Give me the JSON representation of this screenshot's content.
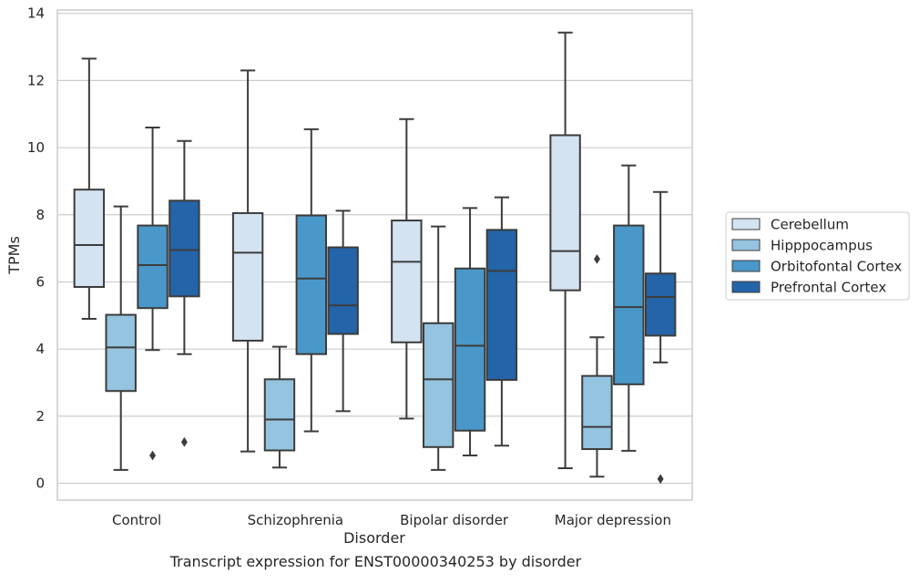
{
  "caption": "Transcript expression for ENST00000340253 by disorder",
  "chart_data": {
    "type": "boxplot",
    "xlabel": "Disorder",
    "ylabel": "TPMs",
    "ylim": [
      -0.5,
      14.1
    ],
    "yticks": [
      0,
      2,
      4,
      6,
      8,
      10,
      12,
      14
    ],
    "grid": "horizontal",
    "legend_position": "right",
    "categories": [
      "Control",
      "Schizophrenia",
      "Bipolar disorder",
      "Major depression"
    ],
    "series": [
      {
        "name": "Cerebellum",
        "color": "#d4e3f1",
        "boxes": [
          {
            "whisker_low": 4.9,
            "q1": 5.85,
            "median": 7.1,
            "q3": 8.75,
            "whisker_high": 12.65,
            "outliers": []
          },
          {
            "whisker_low": 0.95,
            "q1": 4.25,
            "median": 6.87,
            "q3": 8.05,
            "whisker_high": 12.3,
            "outliers": []
          },
          {
            "whisker_low": 1.93,
            "q1": 4.2,
            "median": 6.6,
            "q3": 7.83,
            "whisker_high": 10.85,
            "outliers": []
          },
          {
            "whisker_low": 0.45,
            "q1": 5.75,
            "median": 6.92,
            "q3": 10.37,
            "whisker_high": 13.43,
            "outliers": []
          }
        ]
      },
      {
        "name": "Hipppocampus",
        "color": "#94c4df",
        "boxes": [
          {
            "whisker_low": 0.4,
            "q1": 2.75,
            "median": 4.05,
            "q3": 5.02,
            "whisker_high": 8.25,
            "outliers": []
          },
          {
            "whisker_low": 0.47,
            "q1": 0.98,
            "median": 1.9,
            "q3": 3.1,
            "whisker_high": 4.07,
            "outliers": []
          },
          {
            "whisker_low": 0.4,
            "q1": 1.08,
            "median": 3.1,
            "q3": 4.77,
            "whisker_high": 7.65,
            "outliers": []
          },
          {
            "whisker_low": 0.2,
            "q1": 1.02,
            "median": 1.68,
            "q3": 3.2,
            "whisker_high": 4.35,
            "outliers": [
              6.68
            ]
          }
        ]
      },
      {
        "name": "Orbitofontal Cortex",
        "color": "#4a98c9",
        "boxes": [
          {
            "whisker_low": 3.97,
            "q1": 5.22,
            "median": 6.5,
            "q3": 7.68,
            "whisker_high": 10.6,
            "outliers": [
              0.83
            ]
          },
          {
            "whisker_low": 1.55,
            "q1": 3.85,
            "median": 6.1,
            "q3": 7.98,
            "whisker_high": 10.55,
            "outliers": []
          },
          {
            "whisker_low": 0.83,
            "q1": 1.57,
            "median": 4.1,
            "q3": 6.4,
            "whisker_high": 8.2,
            "outliers": []
          },
          {
            "whisker_low": 0.97,
            "q1": 2.95,
            "median": 5.25,
            "q3": 7.68,
            "whisker_high": 9.47,
            "outliers": []
          }
        ]
      },
      {
        "name": "Prefrontal Cortex",
        "color": "#2464a8",
        "boxes": [
          {
            "whisker_low": 3.85,
            "q1": 5.57,
            "median": 6.95,
            "q3": 8.42,
            "whisker_high": 10.2,
            "outliers": [
              1.23
            ]
          },
          {
            "whisker_low": 2.15,
            "q1": 4.45,
            "median": 5.3,
            "q3": 7.03,
            "whisker_high": 8.12,
            "outliers": []
          },
          {
            "whisker_low": 1.12,
            "q1": 3.08,
            "median": 6.33,
            "q3": 7.55,
            "whisker_high": 8.52,
            "outliers": []
          },
          {
            "whisker_low": 3.6,
            "q1": 4.4,
            "median": 5.55,
            "q3": 6.25,
            "whisker_high": 8.68,
            "outliers": [
              0.13
            ]
          }
        ]
      }
    ]
  }
}
